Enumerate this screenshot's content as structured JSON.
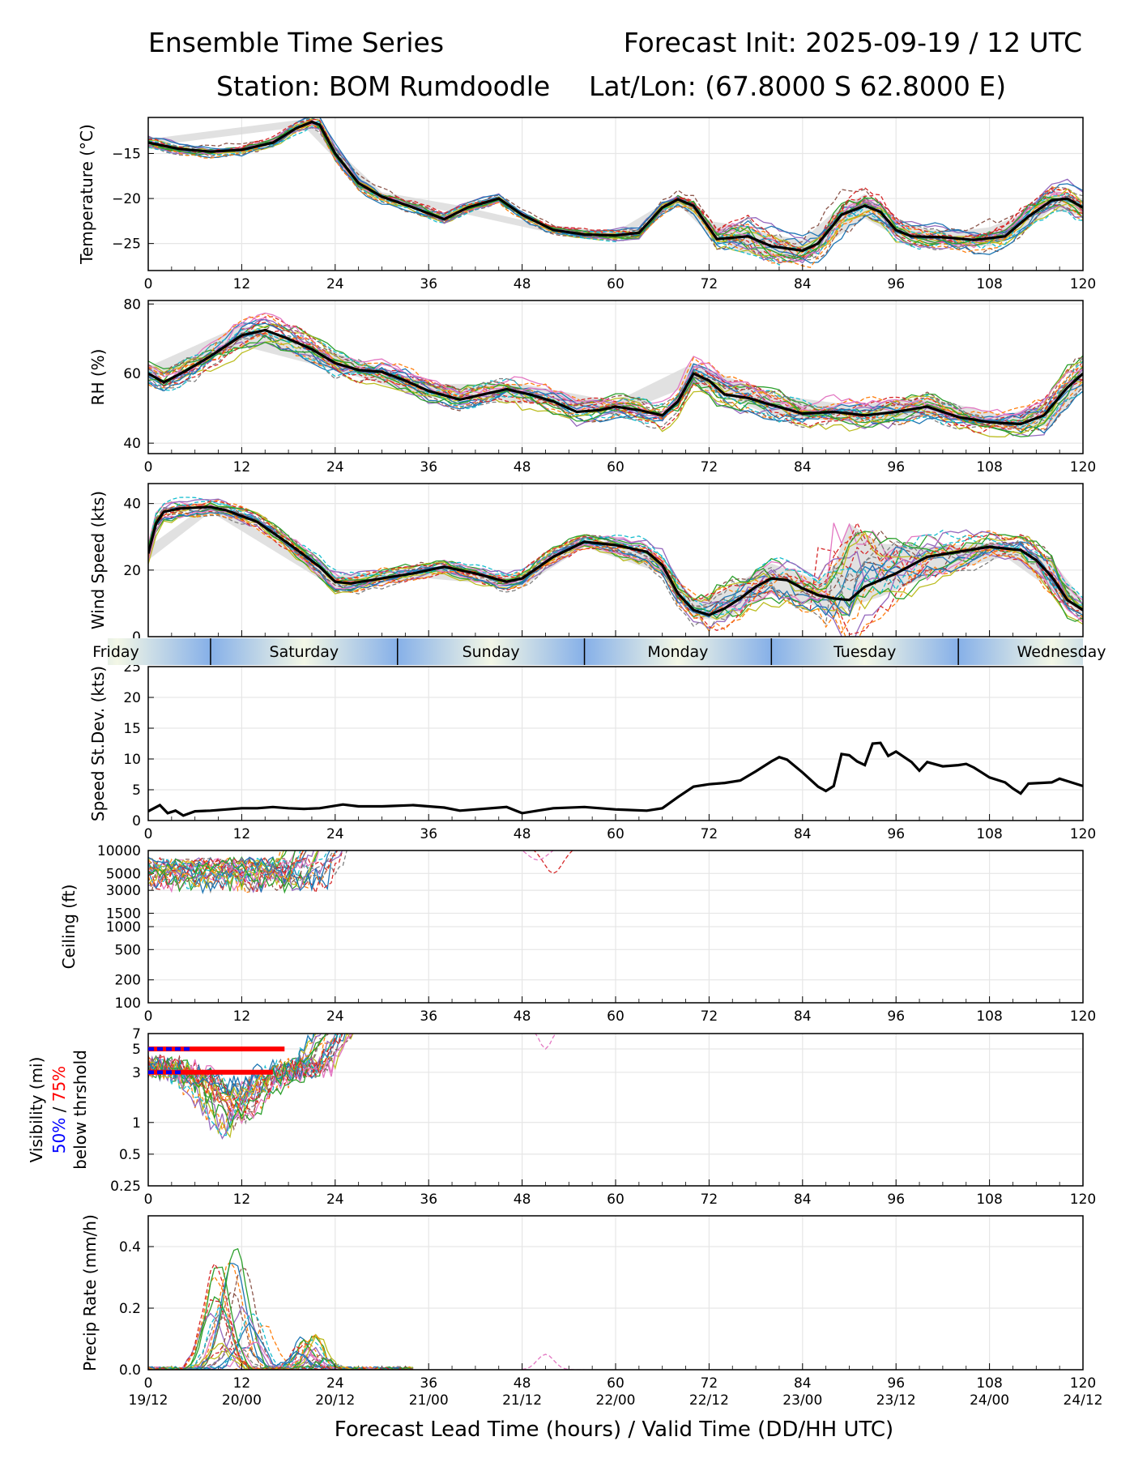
{
  "header": {
    "title_left": "Ensemble Time Series",
    "title_right": "Forecast Init: 2025-09-19 / 12 UTC",
    "station": "Station: BOM Rumdoodle",
    "latlon": "Lat/Lon: (67.8000 S 62.8000 E)"
  },
  "xaxis": {
    "ticks": [
      0,
      12,
      24,
      36,
      48,
      60,
      72,
      84,
      96,
      108,
      120
    ],
    "valid_times": [
      "19/12",
      "20/00",
      "20/12",
      "21/00",
      "21/12",
      "22/00",
      "22/12",
      "23/00",
      "23/12",
      "24/00",
      "24/12"
    ],
    "label": "Forecast Lead Time (hours) / Valid Time (DD/HH UTC)"
  },
  "days": {
    "labels": [
      "Friday",
      "Saturday",
      "Sunday",
      "Monday",
      "Tuesday",
      "Wednesday"
    ],
    "boundaries_hours": [
      8,
      32,
      56,
      80,
      104
    ]
  },
  "colors": {
    "mean": "#000000",
    "spread": "#d9d9d9",
    "vis50": "#0000ff",
    "vis75": "#ff0000",
    "grid": "#e6e6e6",
    "members": [
      "#1f77b4",
      "#ff7f0e",
      "#2ca02c",
      "#d62728",
      "#9467bd",
      "#8c564b",
      "#e377c2",
      "#7f7f7f",
      "#bcbd22",
      "#17becf"
    ]
  },
  "chart_data": [
    {
      "id": "temperature",
      "type": "line",
      "title": "",
      "ylabel": "Temperature (°C)",
      "xlabel": "",
      "xlim": [
        0,
        120
      ],
      "ylim": [
        -28,
        -11
      ],
      "yticks": [
        -25,
        -20,
        -15
      ],
      "ytick_labels": [
        "−25",
        "−20",
        "−15"
      ],
      "member_count": 24,
      "mean": {
        "x": [
          0,
          4,
          8,
          12,
          16,
          19,
          21,
          22,
          24,
          27,
          30,
          34,
          38,
          41,
          45,
          48,
          52,
          56,
          60,
          63,
          66,
          68,
          70,
          73,
          77,
          80,
          84,
          86,
          89,
          92,
          94,
          96,
          98,
          102,
          106,
          110,
          113,
          116,
          118,
          120
        ],
        "y": [
          -13.8,
          -14.5,
          -14.8,
          -14.6,
          -13.8,
          -12.2,
          -11.5,
          -11.8,
          -15.0,
          -18.3,
          -19.8,
          -21.0,
          -22.3,
          -21.0,
          -20.0,
          -21.8,
          -23.5,
          -24.0,
          -24.1,
          -23.8,
          -21.0,
          -20.1,
          -20.8,
          -24.5,
          -24.2,
          -25.3,
          -25.8,
          -25.0,
          -21.8,
          -20.8,
          -21.5,
          -23.5,
          -24.2,
          -24.3,
          -24.6,
          -24.2,
          -22.0,
          -20.2,
          -20.0,
          -21.0
        ]
      },
      "spread": {
        "x": [
          0,
          20,
          24,
          30,
          40,
          50,
          60,
          68,
          72,
          76,
          80,
          84,
          88,
          92,
          96,
          100,
          104,
          108,
          112,
          116,
          120
        ],
        "lower": [
          -14.2,
          -12.0,
          -15.6,
          -20.3,
          -21.6,
          -23.5,
          -24.5,
          -20.6,
          -24.0,
          -26.0,
          -26.5,
          -26.8,
          -24.5,
          -22.2,
          -24.2,
          -25.0,
          -25.3,
          -25.3,
          -24.0,
          -21.2,
          -22.0
        ],
        "upper": [
          -13.4,
          -11.2,
          -14.4,
          -19.3,
          -20.8,
          -22.8,
          -23.7,
          -19.6,
          -22.5,
          -23.0,
          -24.0,
          -24.6,
          -21.5,
          -19.5,
          -22.5,
          -23.4,
          -23.6,
          -23.2,
          -21.8,
          -19.0,
          -20.0
        ]
      }
    },
    {
      "id": "rh",
      "type": "line",
      "ylabel": "RH (%)",
      "xlim": [
        0,
        120
      ],
      "ylim": [
        37,
        81
      ],
      "yticks": [
        40,
        60,
        80
      ],
      "ytick_labels": [
        "40",
        "60",
        "80"
      ],
      "member_count": 24,
      "mean": {
        "x": [
          0,
          2,
          5,
          8,
          12,
          15,
          18,
          21,
          24,
          27,
          30,
          33,
          36,
          40,
          42,
          46,
          49,
          52,
          55,
          58,
          60,
          63,
          66,
          68,
          70,
          72,
          74,
          77,
          80,
          84,
          88,
          92,
          96,
          100,
          104,
          108,
          112,
          115,
          118,
          120
        ],
        "y": [
          60,
          57.5,
          61,
          65,
          71,
          72.5,
          70,
          67,
          63,
          61,
          60.5,
          58,
          55,
          52.5,
          53.5,
          55.5,
          54,
          52,
          49,
          49.5,
          50.5,
          49.5,
          48,
          52,
          60,
          58,
          54,
          53,
          51,
          48.5,
          49,
          48,
          49,
          50.5,
          47.5,
          46,
          45.5,
          48,
          56,
          60
        ]
      },
      "spread": {
        "x": [
          0,
          12,
          24,
          36,
          48,
          60,
          70,
          80,
          90,
          100,
          110,
          116,
          120
        ],
        "lower": [
          58,
          68,
          61,
          53,
          52,
          48,
          57,
          48,
          46,
          48,
          44,
          45,
          56
        ],
        "upper": [
          62,
          74,
          66,
          57,
          57,
          52,
          63,
          54,
          51,
          53,
          48,
          52,
          63
        ]
      }
    },
    {
      "id": "wind_speed",
      "type": "line",
      "ylabel": "Wind Speed (kts)",
      "xlim": [
        0,
        120
      ],
      "ylim": [
        0,
        46
      ],
      "yticks": [
        0,
        20,
        40
      ],
      "ytick_labels": [
        "0",
        "20",
        "40"
      ],
      "member_count": 24,
      "mean": {
        "x": [
          0,
          1,
          2,
          4,
          8,
          10,
          14,
          18,
          22,
          24,
          26,
          30,
          34,
          38,
          42,
          46,
          48,
          52,
          56,
          60,
          64,
          66,
          68,
          70,
          72,
          74,
          76,
          78,
          80,
          82,
          84,
          86,
          88,
          90,
          92,
          96,
          100,
          104,
          108,
          112,
          114,
          116,
          118,
          120
        ],
        "y": [
          25,
          34,
          37.5,
          38.5,
          39,
          38,
          34.5,
          28,
          21,
          16.5,
          16,
          17.5,
          19,
          21,
          19,
          16.5,
          17.5,
          24,
          28.5,
          27.5,
          25.5,
          21.5,
          13,
          8,
          6.5,
          8.5,
          11.5,
          15,
          17.5,
          17,
          14.5,
          12.5,
          11.5,
          11,
          15,
          19,
          24,
          25.5,
          27,
          26,
          23,
          18,
          11,
          8
        ]
      },
      "spread": {
        "x": [
          0,
          8,
          24,
          36,
          48,
          56,
          66,
          70,
          74,
          80,
          86,
          88,
          90,
          94,
          100,
          110,
          116,
          120
        ],
        "lower": [
          23,
          37.5,
          14.5,
          17.5,
          15,
          27,
          19,
          5.5,
          5,
          13,
          9,
          6,
          9,
          12,
          18,
          24,
          14,
          6.5
        ],
        "upper": [
          27,
          40.5,
          18.5,
          20.5,
          18.5,
          30,
          24,
          11,
          14,
          22,
          17,
          21,
          34,
          28,
          27,
          28.5,
          23,
          11
        ]
      }
    },
    {
      "id": "speed_stdev",
      "type": "line",
      "ylabel": "Speed St.Dev. (kts)",
      "xlim": [
        0,
        120
      ],
      "ylim": [
        0,
        25
      ],
      "yticks": [
        0,
        5,
        10,
        15,
        20,
        25
      ],
      "ytick_labels": [
        "0",
        "5",
        "10",
        "15",
        "20",
        "25"
      ],
      "mean": {
        "x": [
          0,
          1.5,
          2.5,
          3.5,
          4.5,
          6,
          8,
          10,
          12,
          14,
          16,
          18,
          20,
          22,
          25,
          27,
          30,
          34,
          36,
          38,
          40,
          42,
          46,
          48,
          50,
          52,
          56,
          60,
          64,
          66,
          68,
          70,
          72,
          74,
          76,
          78,
          80,
          81,
          82,
          84,
          86,
          87,
          88,
          89,
          90,
          91,
          92,
          93,
          94,
          95,
          96,
          98,
          99,
          100,
          102,
          104,
          105,
          106,
          107,
          108,
          110,
          111,
          112,
          113,
          116,
          117,
          118,
          120
        ],
        "y": [
          1.5,
          2.5,
          1.2,
          1.6,
          0.8,
          1.5,
          1.6,
          1.8,
          2.0,
          2.0,
          2.2,
          2.0,
          1.9,
          2.0,
          2.6,
          2.3,
          2.3,
          2.5,
          2.3,
          2.1,
          1.6,
          1.8,
          2.2,
          1.2,
          1.6,
          2.0,
          2.2,
          1.8,
          1.6,
          2.0,
          3.8,
          5.5,
          5.9,
          6.1,
          6.5,
          8.0,
          9.6,
          10.3,
          9.9,
          7.8,
          5.5,
          4.8,
          5.6,
          10.8,
          10.6,
          9.6,
          9.0,
          12.5,
          12.6,
          10.5,
          11.2,
          9.5,
          8.1,
          9.5,
          8.8,
          9.0,
          9.2,
          8.6,
          7.8,
          7.0,
          6.2,
          5.2,
          4.4,
          6.0,
          6.2,
          6.8,
          6.4,
          5.6
        ]
      }
    },
    {
      "id": "ceiling",
      "type": "line",
      "ylabel": "Ceiling (ft)",
      "yscale": "log",
      "xlim": [
        0,
        120
      ],
      "ylim": [
        100,
        10000
      ],
      "yticks": [
        100,
        200,
        500,
        1000,
        1500,
        3000,
        5000,
        10000
      ],
      "ytick_labels": [
        "100",
        "200",
        "500",
        "1000",
        "1500",
        "3000",
        "5000",
        "10000"
      ],
      "member_count": 24
    },
    {
      "id": "visibility",
      "type": "line",
      "ylabel": "Visibility (mi)",
      "ylabel_pct50": "50%",
      "ylabel_slash": " / ",
      "ylabel_pct75": "75%",
      "ylabel_below": "below thrshold",
      "yscale": "log",
      "xlim": [
        0,
        120
      ],
      "ylim": [
        0.25,
        7
      ],
      "yticks": [
        0.25,
        0.5,
        1,
        3,
        5,
        7
      ],
      "ytick_labels": [
        "0.25",
        "0.5",
        "1",
        "3",
        "5",
        "7"
      ],
      "member_count": 24,
      "threshold_bars": [
        {
          "threshold": 5,
          "pct": "75%",
          "start_hour": 0,
          "end_hour": 17.5
        },
        {
          "threshold": 5,
          "pct": "50%",
          "start_hour": 0,
          "end_hour": 5.5
        },
        {
          "threshold": 3,
          "pct": "75%",
          "start_hour": 0,
          "end_hour": 16
        },
        {
          "threshold": 3,
          "pct": "50%",
          "start_hour": 0,
          "end_hour": 4.5
        }
      ]
    },
    {
      "id": "precip_rate",
      "type": "line",
      "ylabel": "Precip Rate (mm/h)",
      "xlim": [
        0,
        120
      ],
      "ylim": [
        0,
        0.5
      ],
      "yticks": [
        0.0,
        0.2,
        0.4
      ],
      "ytick_labels": [
        "0.0",
        "0.2",
        "0.4"
      ],
      "member_count": 24
    }
  ]
}
